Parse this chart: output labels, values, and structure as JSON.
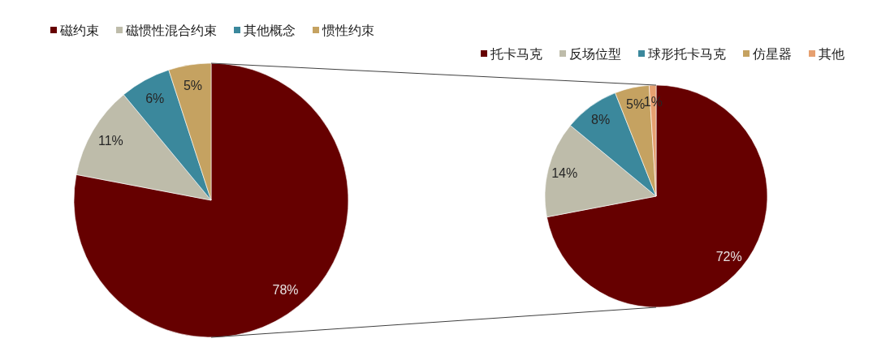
{
  "chart_data": [
    {
      "type": "pie",
      "categories": [
        "磁约束",
        "磁惯性混合约束",
        "其他概念",
        "惯性约朿"
      ],
      "values": [
        78,
        11,
        6,
        5
      ],
      "colors": [
        "#660000",
        "#bebcaa",
        "#3b889c",
        "#c5a261"
      ],
      "value_labels": [
        "78%",
        "11%",
        "6%",
        "5%"
      ],
      "legend": "top left"
    },
    {
      "type": "pie",
      "categories": [
        "托卡马克",
        "反场位型",
        "球形托卡马克",
        "仿星器",
        "其他"
      ],
      "values": [
        72,
        14,
        8,
        5,
        1
      ],
      "colors": [
        "#660000",
        "#bebcaa",
        "#3b889c",
        "#c5a261",
        "#e6a070"
      ],
      "value_labels": [
        "72%",
        "14%",
        "8%",
        "5%",
        "1%"
      ],
      "legend": "top right"
    }
  ]
}
